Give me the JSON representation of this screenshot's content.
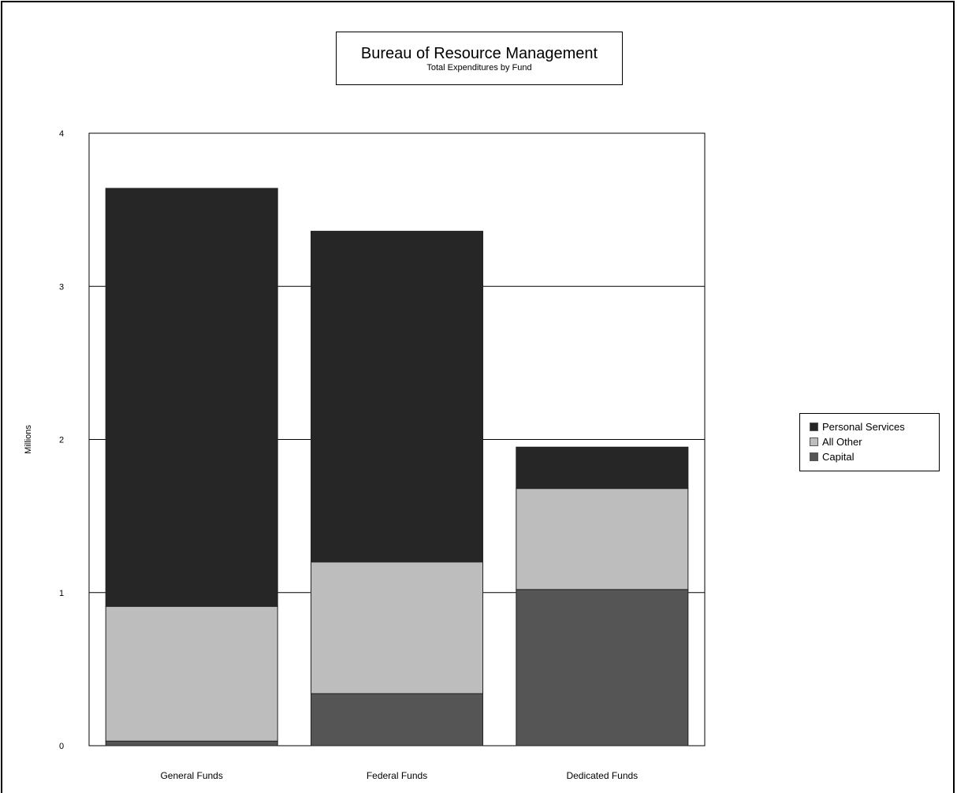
{
  "chart_data": {
    "type": "bar",
    "stacked": true,
    "title": "Bureau of Resource Management",
    "subtitle": "Total Expenditures by Fund",
    "ylabel": "Millions",
    "xlabel": "",
    "ylim": [
      0,
      4
    ],
    "yticks": [
      "0",
      "1",
      "2",
      "3",
      "4"
    ],
    "grid": true,
    "legend_position": "right",
    "categories": [
      "General Funds",
      "Federal Funds",
      "Dedicated Funds"
    ],
    "series": [
      {
        "name": "Capital",
        "values": [
          0.03,
          0.34,
          1.02
        ],
        "color": "#555555"
      },
      {
        "name": "All Other",
        "values": [
          0.88,
          0.86,
          0.66
        ],
        "color": "#bdbdbd"
      },
      {
        "name": "Personal Services",
        "values": [
          2.73,
          2.16,
          0.27
        ],
        "color": "#262626"
      }
    ],
    "legend_order": [
      "Personal Services",
      "All Other",
      "Capital"
    ]
  }
}
